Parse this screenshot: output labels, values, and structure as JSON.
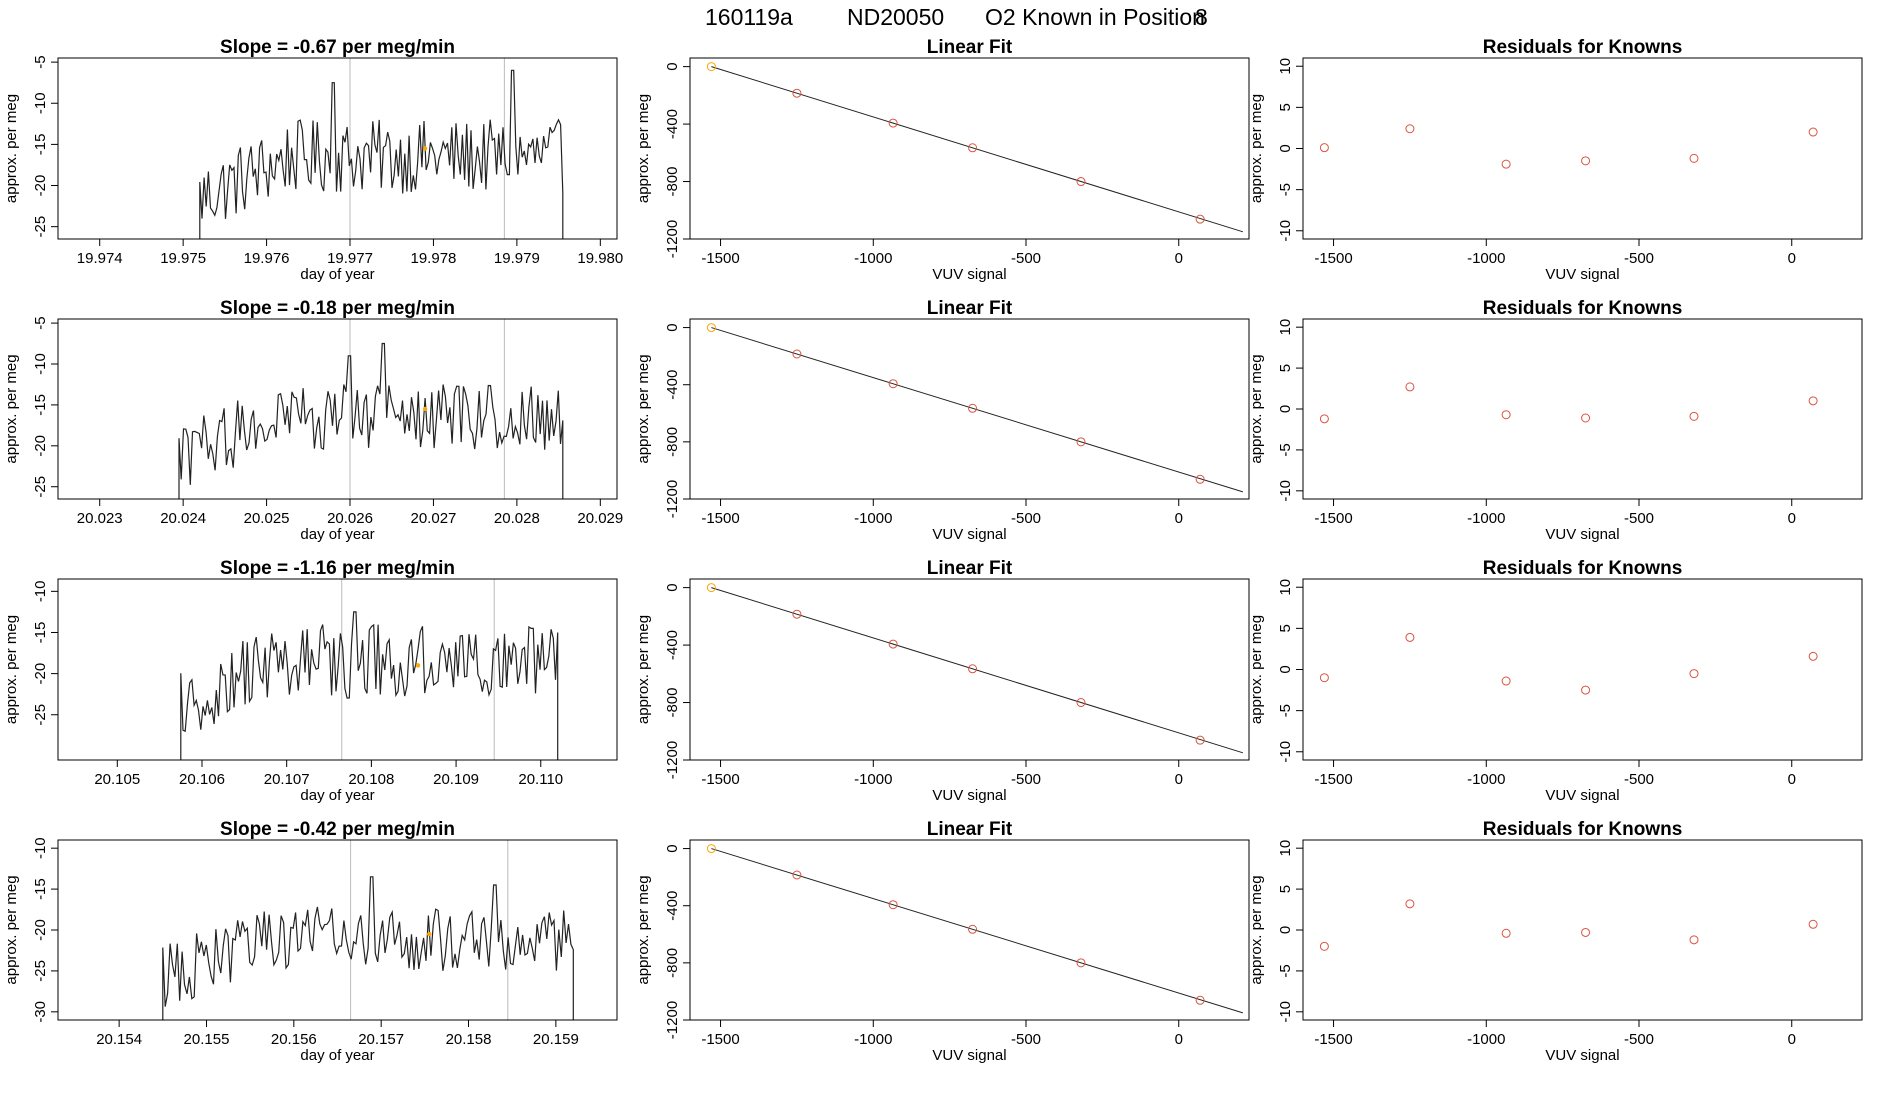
{
  "figure_title": {
    "run_id": "160119a",
    "tank_id": "ND20050",
    "label": "O2 Known in Position",
    "position": "8"
  },
  "colors": {
    "trace": "#222222",
    "marker_known": "#d9543f",
    "marker_highlight": "#ffa500",
    "guide_line": "#bbbbbb",
    "fit_line": "#222222",
    "frame": "#000000"
  },
  "chart_data": [
    {
      "type": "line",
      "row": 1,
      "panel": "timeseries",
      "title": "Slope =  -0.67  per meg/min",
      "xlabel": "day of year",
      "ylabel": "approx. per meg",
      "xlim": [
        19.9735,
        19.9802
      ],
      "ylim": [
        -26.5,
        -4.5
      ],
      "xticks": [
        19.974,
        19.975,
        19.976,
        19.977,
        19.978,
        19.979,
        19.98
      ],
      "xtick_labels": [
        "19.974",
        "19.975",
        "19.976",
        "19.977",
        "19.978",
        "19.979",
        "19.980"
      ],
      "yticks": [
        -5,
        -10,
        -15,
        -20,
        -25
      ],
      "vlines": [
        19.977,
        19.97885
      ],
      "highlight_point": {
        "x": 19.9779,
        "y": -15.5
      },
      "trace": {
        "x_start": 19.9752,
        "x_end": 19.97955,
        "baseline": -16.5,
        "amplitude": 4.5,
        "spikes": [
          [
            19.9768,
            -7.5
          ],
          [
            19.97895,
            -6.0
          ]
        ]
      }
    },
    {
      "type": "scatter",
      "row": 1,
      "panel": "fit",
      "title": "Linear Fit",
      "xlabel": "VUV signal",
      "ylabel": "approx. per meg",
      "xlim": [
        -1600,
        230
      ],
      "ylim": [
        -1200,
        60
      ],
      "xticks": [
        -1500,
        -1000,
        -500,
        0
      ],
      "xtick_labels": [
        "-1500",
        "-1000",
        "-500",
        "0"
      ],
      "yticks": [
        0,
        -400,
        -800,
        -1200
      ],
      "ytick_labels": [
        "0",
        "-400",
        "-800",
        "-1200"
      ],
      "points": [
        [
          -1530,
          0
        ],
        [
          -1250,
          -185
        ],
        [
          -935,
          -393
        ],
        [
          -675,
          -565
        ],
        [
          -320,
          -800
        ],
        [
          70,
          -1062
        ]
      ],
      "highlight_index": 0,
      "fit_line": [
        [
          -1530,
          0
        ],
        [
          210,
          -1150
        ]
      ]
    },
    {
      "type": "scatter",
      "row": 1,
      "panel": "residuals",
      "title": "Residuals for Knowns",
      "xlabel": "VUV signal",
      "ylabel": "approx. per meg",
      "xlim": [
        -1600,
        230
      ],
      "ylim": [
        -11,
        11
      ],
      "xticks": [
        -1500,
        -1000,
        -500,
        0
      ],
      "xtick_labels": [
        "-1500",
        "-1000",
        "-500",
        "0"
      ],
      "yticks": [
        10,
        5,
        0,
        -5,
        -10
      ],
      "ytick_labels": [
        "10",
        "5",
        "0",
        "-5",
        "-10"
      ],
      "points": [
        [
          -1530,
          0.1
        ],
        [
          -1250,
          2.4
        ],
        [
          -935,
          -1.9
        ],
        [
          -675,
          -1.5
        ],
        [
          -320,
          -1.2
        ],
        [
          70,
          2.0
        ]
      ]
    },
    {
      "type": "line",
      "row": 2,
      "panel": "timeseries",
      "title": "Slope =  -0.18  per meg/min",
      "xlabel": "day of year",
      "ylabel": "approx. per meg",
      "xlim": [
        20.0225,
        20.0292
      ],
      "ylim": [
        -26.5,
        -4.5
      ],
      "xticks": [
        20.023,
        20.024,
        20.025,
        20.026,
        20.027,
        20.028,
        20.029
      ],
      "xtick_labels": [
        "20.023",
        "20.024",
        "20.025",
        "20.026",
        "20.027",
        "20.028",
        "20.029"
      ],
      "yticks": [
        -5,
        -10,
        -15,
        -20,
        -25
      ],
      "vlines": [
        20.026,
        20.02785
      ],
      "highlight_point": {
        "x": 20.0269,
        "y": -15.5
      },
      "trace": {
        "x_start": 20.02395,
        "x_end": 20.02855,
        "baseline": -16.5,
        "amplitude": 4.0,
        "spikes": [
          [
            20.026,
            -9.0
          ],
          [
            20.0264,
            -7.5
          ]
        ]
      }
    },
    {
      "type": "scatter",
      "row": 2,
      "panel": "fit",
      "title": "Linear Fit",
      "xlabel": "VUV signal",
      "ylabel": "approx. per meg",
      "xlim": [
        -1600,
        230
      ],
      "ylim": [
        -1200,
        60
      ],
      "xticks": [
        -1500,
        -1000,
        -500,
        0
      ],
      "xtick_labels": [
        "-1500",
        "-1000",
        "-500",
        "0"
      ],
      "yticks": [
        0,
        -400,
        -800,
        -1200
      ],
      "ytick_labels": [
        "0",
        "-400",
        "-800",
        "-1200"
      ],
      "points": [
        [
          -1530,
          0
        ],
        [
          -1250,
          -185
        ],
        [
          -935,
          -393
        ],
        [
          -675,
          -565
        ],
        [
          -320,
          -800
        ],
        [
          70,
          -1062
        ]
      ],
      "highlight_index": 0,
      "fit_line": [
        [
          -1530,
          0
        ],
        [
          210,
          -1150
        ]
      ]
    },
    {
      "type": "scatter",
      "row": 2,
      "panel": "residuals",
      "title": "Residuals for Knowns",
      "xlabel": "VUV signal",
      "ylabel": "approx. per meg",
      "xlim": [
        -1600,
        230
      ],
      "ylim": [
        -11,
        11
      ],
      "xticks": [
        -1500,
        -1000,
        -500,
        0
      ],
      "xtick_labels": [
        "-1500",
        "-1000",
        "-500",
        "0"
      ],
      "yticks": [
        10,
        5,
        0,
        -5,
        -10
      ],
      "ytick_labels": [
        "10",
        "5",
        "0",
        "-5",
        "-10"
      ],
      "points": [
        [
          -1530,
          -1.2
        ],
        [
          -1250,
          2.7
        ],
        [
          -935,
          -0.7
        ],
        [
          -675,
          -1.1
        ],
        [
          -320,
          -0.9
        ],
        [
          70,
          1.0
        ]
      ]
    },
    {
      "type": "line",
      "row": 3,
      "panel": "timeseries",
      "title": "Slope =  -1.16  per meg/min",
      "xlabel": "day of year",
      "ylabel": "approx. per meg",
      "xlim": [
        20.1043,
        20.1109
      ],
      "ylim": [
        -30.5,
        -8.5
      ],
      "xticks": [
        20.105,
        20.106,
        20.107,
        20.108,
        20.109,
        20.11
      ],
      "xtick_labels": [
        "20.105",
        "20.106",
        "20.107",
        "20.108",
        "20.109",
        "20.110"
      ],
      "yticks": [
        -10,
        -15,
        -20,
        -25
      ],
      "vlines": [
        20.10765,
        20.10945
      ],
      "highlight_point": {
        "x": 20.10855,
        "y": -19.0
      },
      "trace": {
        "x_start": 20.10575,
        "x_end": 20.1102,
        "baseline": -18.5,
        "amplitude": 4.5,
        "spikes": [
          [
            20.1078,
            -12.5
          ],
          [
            20.1099,
            -14.5
          ]
        ]
      }
    },
    {
      "type": "scatter",
      "row": 3,
      "panel": "fit",
      "title": "Linear Fit",
      "xlabel": "VUV signal",
      "ylabel": "approx. per meg",
      "xlim": [
        -1600,
        230
      ],
      "ylim": [
        -1200,
        60
      ],
      "xticks": [
        -1500,
        -1000,
        -500,
        0
      ],
      "xtick_labels": [
        "-1500",
        "-1000",
        "-500",
        "0"
      ],
      "yticks": [
        0,
        -400,
        -800,
        -1200
      ],
      "ytick_labels": [
        "0",
        "-400",
        "-800",
        "-1200"
      ],
      "points": [
        [
          -1530,
          0
        ],
        [
          -1250,
          -185
        ],
        [
          -935,
          -393
        ],
        [
          -675,
          -565
        ],
        [
          -320,
          -800
        ],
        [
          70,
          -1062
        ]
      ],
      "highlight_index": 0,
      "fit_line": [
        [
          -1530,
          0
        ],
        [
          210,
          -1150
        ]
      ]
    },
    {
      "type": "scatter",
      "row": 3,
      "panel": "residuals",
      "title": "Residuals for Knowns",
      "xlabel": "VUV signal",
      "ylabel": "approx. per meg",
      "xlim": [
        -1600,
        230
      ],
      "ylim": [
        -11,
        11
      ],
      "xticks": [
        -1500,
        -1000,
        -500,
        0
      ],
      "xtick_labels": [
        "-1500",
        "-1000",
        "-500",
        "0"
      ],
      "yticks": [
        10,
        5,
        0,
        -5,
        -10
      ],
      "ytick_labels": [
        "10",
        "5",
        "0",
        "-5",
        "-10"
      ],
      "points": [
        [
          -1530,
          -1.0
        ],
        [
          -1250,
          3.9
        ],
        [
          -935,
          -1.4
        ],
        [
          -675,
          -2.5
        ],
        [
          -320,
          -0.5
        ],
        [
          70,
          1.6
        ]
      ]
    },
    {
      "type": "line",
      "row": 4,
      "panel": "timeseries",
      "title": "Slope =  -0.42  per meg/min",
      "xlabel": "day of year",
      "ylabel": "approx. per meg",
      "xlim": [
        20.1533,
        20.1597
      ],
      "ylim": [
        -31,
        -9
      ],
      "xticks": [
        20.154,
        20.155,
        20.156,
        20.157,
        20.158,
        20.159
      ],
      "xtick_labels": [
        "20.154",
        "20.155",
        "20.156",
        "20.157",
        "20.158",
        "20.159"
      ],
      "yticks": [
        -10,
        -15,
        -20,
        -25,
        -30
      ],
      "vlines": [
        20.15665,
        20.15845
      ],
      "highlight_point": {
        "x": 20.15755,
        "y": -20.5
      },
      "trace": {
        "x_start": 20.1545,
        "x_end": 20.1592,
        "baseline": -21.0,
        "amplitude": 4.0,
        "spikes": [
          [
            20.1569,
            -13.5
          ],
          [
            20.1583,
            -14.5
          ]
        ]
      }
    },
    {
      "type": "scatter",
      "row": 4,
      "panel": "fit",
      "title": "Linear Fit",
      "xlabel": "VUV signal",
      "ylabel": "approx. per meg",
      "xlim": [
        -1600,
        230
      ],
      "ylim": [
        -1200,
        60
      ],
      "xticks": [
        -1500,
        -1000,
        -500,
        0
      ],
      "xtick_labels": [
        "-1500",
        "-1000",
        "-500",
        "0"
      ],
      "yticks": [
        0,
        -400,
        -800,
        -1200
      ],
      "ytick_labels": [
        "0",
        "-400",
        "-800",
        "-1200"
      ],
      "points": [
        [
          -1530,
          0
        ],
        [
          -1250,
          -185
        ],
        [
          -935,
          -393
        ],
        [
          -675,
          -565
        ],
        [
          -320,
          -800
        ],
        [
          70,
          -1062
        ]
      ],
      "highlight_index": 0,
      "fit_line": [
        [
          -1530,
          0
        ],
        [
          210,
          -1150
        ]
      ]
    },
    {
      "type": "scatter",
      "row": 4,
      "panel": "residuals",
      "title": "Residuals for Knowns",
      "xlabel": "VUV signal",
      "ylabel": "approx. per meg",
      "xlim": [
        -1600,
        230
      ],
      "ylim": [
        -11,
        11
      ],
      "xticks": [
        -1500,
        -1000,
        -500,
        0
      ],
      "xtick_labels": [
        "-1500",
        "-1000",
        "-500",
        "0"
      ],
      "yticks": [
        10,
        5,
        0,
        -5,
        -10
      ],
      "ytick_labels": [
        "10",
        "5",
        "0",
        "-5",
        "-10"
      ],
      "points": [
        [
          -1530,
          -2.0
        ],
        [
          -1250,
          3.2
        ],
        [
          -935,
          -0.4
        ],
        [
          -675,
          -0.3
        ],
        [
          -320,
          -1.2
        ],
        [
          70,
          0.7
        ]
      ]
    }
  ]
}
